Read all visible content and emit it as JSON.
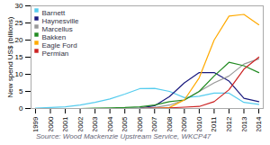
{
  "chart_data": {
    "type": "line",
    "ylabel": "New spend US$ (billions)",
    "source": "Source: Wood Mackenzie Upstream Service, WKCP47",
    "x": [
      1999,
      2000,
      2001,
      2002,
      2003,
      2004,
      2005,
      2006,
      2007,
      2008,
      2009,
      2010,
      2011,
      2012,
      2013,
      2014
    ],
    "series": [
      {
        "name": "Barnett",
        "color": "#55ccee",
        "values": [
          0.1,
          0.3,
          0.5,
          1.0,
          1.8,
          2.8,
          4.2,
          5.8,
          5.9,
          5.0,
          3.2,
          3.6,
          4.5,
          4.5,
          1.8,
          1.2
        ]
      },
      {
        "name": "Haynesville",
        "color": "#1a1a7e",
        "values": [
          0.0,
          0.0,
          0.0,
          0.0,
          0.0,
          0.0,
          0.0,
          0.1,
          0.8,
          3.5,
          7.5,
          10.5,
          10.5,
          8.0,
          3.0,
          2.0
        ]
      },
      {
        "name": "Marcellus",
        "color": "#999999",
        "values": [
          0.0,
          0.0,
          0.0,
          0.0,
          0.0,
          0.0,
          0.0,
          0.1,
          0.3,
          1.0,
          2.5,
          5.0,
          7.5,
          9.5,
          13.0,
          14.5
        ]
      },
      {
        "name": "Bakken",
        "color": "#228b22",
        "values": [
          0.0,
          0.0,
          0.0,
          0.0,
          0.1,
          0.2,
          0.3,
          0.5,
          1.0,
          2.0,
          2.5,
          5.0,
          9.5,
          13.5,
          12.5,
          10.5
        ]
      },
      {
        "name": "Eagle Ford",
        "color": "#ffaa00",
        "values": [
          0.0,
          0.0,
          0.0,
          0.0,
          0.0,
          0.0,
          0.0,
          0.0,
          0.0,
          0.3,
          2.5,
          9.0,
          20.0,
          27.0,
          27.5,
          24.5
        ]
      },
      {
        "name": "Permian",
        "color": "#cc2222",
        "values": [
          0.0,
          0.0,
          0.0,
          0.0,
          0.0,
          0.0,
          0.0,
          0.0,
          0.1,
          0.2,
          0.4,
          0.6,
          2.0,
          5.5,
          11.5,
          15.0
        ]
      }
    ],
    "xlim": [
      1998.7,
      2014.3
    ],
    "xticks": [
      1999,
      2000,
      2001,
      2002,
      2003,
      2004,
      2005,
      2006,
      2007,
      2008,
      2009,
      2010,
      2011,
      2012,
      2013,
      2014
    ],
    "ylim": [
      0,
      30
    ],
    "yticks": [
      0,
      5,
      10,
      15,
      20,
      25,
      30
    ],
    "grid": false,
    "legend": "top-left"
  }
}
